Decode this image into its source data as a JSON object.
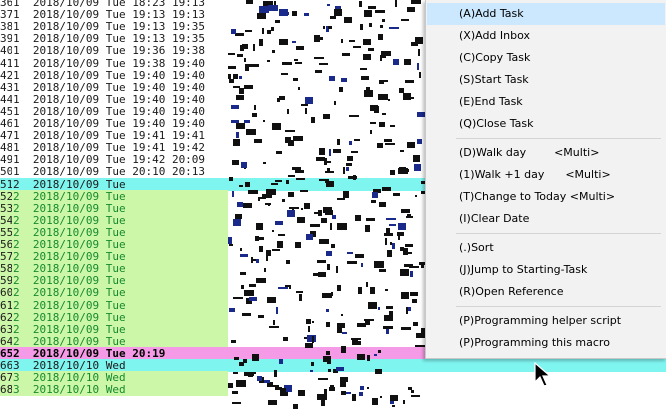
{
  "editor": {
    "lines": [
      {
        "num": "36",
        "text": "1  2018/10/09 Tue 18:23 19:13",
        "style": "normal"
      },
      {
        "num": "37",
        "text": "1  2018/10/09 Tue 19:13 19:13",
        "style": "normal"
      },
      {
        "num": "38",
        "text": "1  2018/10/09 Tue 19:13 19:35",
        "style": "normal"
      },
      {
        "num": "39",
        "text": "1  2018/10/09 Tue 19:13 19:35",
        "style": "normal"
      },
      {
        "num": "40",
        "text": "1  2018/10/09 Tue 19:36 19:38",
        "style": "normal"
      },
      {
        "num": "41",
        "text": "1  2018/10/09 Tue 19:38 19:40",
        "style": "normal"
      },
      {
        "num": "42",
        "text": "1  2018/10/09 Tue 19:40 19:40",
        "style": "normal"
      },
      {
        "num": "43",
        "text": "1  2018/10/09 Tue 19:40 19:40",
        "style": "normal"
      },
      {
        "num": "44",
        "text": "1  2018/10/09 Tue 19:40 19:40",
        "style": "normal"
      },
      {
        "num": "45",
        "text": "1  2018/10/09 Tue 19:40 19:40",
        "style": "normal"
      },
      {
        "num": "46",
        "text": "1  2018/10/09 Tue 19:40 19:40",
        "style": "normal"
      },
      {
        "num": "47",
        "text": "1  2018/10/09 Tue 19:41 19:41",
        "style": "normal"
      },
      {
        "num": "48",
        "text": "1  2018/10/09 Tue 19:41 19:42",
        "style": "normal"
      },
      {
        "num": "49",
        "text": "1  2018/10/09 Tue 19:42 20:09",
        "style": "normal"
      },
      {
        "num": "50",
        "text": "1  2018/10/09 Tue 20:10 20:13",
        "style": "normal"
      },
      {
        "num": "51",
        "text": "2  2018/10/09 Tue",
        "style": "cyan"
      },
      {
        "num": "52",
        "text": "2  2018/10/09 Tue",
        "style": "green"
      },
      {
        "num": "53",
        "text": "2  2018/10/09 Tue",
        "style": "green"
      },
      {
        "num": "54",
        "text": "2  2018/10/09 Tue",
        "style": "green"
      },
      {
        "num": "55",
        "text": "2  2018/10/09 Tue",
        "style": "green"
      },
      {
        "num": "56",
        "text": "2  2018/10/09 Tue",
        "style": "green"
      },
      {
        "num": "57",
        "text": "2  2018/10/09 Tue",
        "style": "green"
      },
      {
        "num": "58",
        "text": "2  2018/10/09 Tue",
        "style": "green"
      },
      {
        "num": "59",
        "text": "2  2018/10/09 Tue",
        "style": "green"
      },
      {
        "num": "60",
        "text": "2  2018/10/09 Tue",
        "style": "green"
      },
      {
        "num": "61",
        "text": "2  2018/10/09 Tue",
        "style": "green"
      },
      {
        "num": "62",
        "text": "2  2018/10/09 Tue",
        "style": "green"
      },
      {
        "num": "63",
        "text": "2  2018/10/09 Tue",
        "style": "green"
      },
      {
        "num": "64",
        "text": "2  2018/10/09 Tue",
        "style": "green"
      },
      {
        "num": "65",
        "text": "2  2018/10/09 Tue 20:19",
        "style": "pink"
      },
      {
        "num": "66",
        "text": "3  2018/10/10 Wed",
        "style": "cyan"
      },
      {
        "num": "67",
        "text": "3  2018/10/10 Wed",
        "style": "green"
      },
      {
        "num": "68",
        "text": "3  2018/10/10 Wed",
        "style": "green"
      }
    ]
  },
  "context_menu": {
    "items": [
      {
        "key": "add-task",
        "label": "(A)Add Task",
        "selected": true
      },
      {
        "key": "add-inbox",
        "label": "(X)Add Inbox"
      },
      {
        "key": "copy-task",
        "label": "(C)Copy Task"
      },
      {
        "key": "start-task",
        "label": "(S)Start Task"
      },
      {
        "key": "end-task",
        "label": "(E)End Task"
      },
      {
        "key": "close-task",
        "label": "(Q)Close Task"
      },
      {
        "sep": true
      },
      {
        "key": "walk-day",
        "label": "(D)Walk day        <Multi>"
      },
      {
        "key": "walk-plus-1-day",
        "label": "(1)Walk +1 day      <Multi>"
      },
      {
        "key": "change-to-today",
        "label": "(T)Change to Today <Multi>"
      },
      {
        "key": "clear-date",
        "label": "(I)Clear Date"
      },
      {
        "sep": true
      },
      {
        "key": "sort",
        "label": "(.)Sort"
      },
      {
        "key": "jump-to-starting-task",
        "label": "(J)Jump to Starting-Task"
      },
      {
        "key": "open-reference",
        "label": "(R)Open Reference"
      },
      {
        "sep": true
      },
      {
        "key": "programming-helper-script",
        "label": "(P)Programming helper script"
      },
      {
        "key": "programming-this-macro",
        "label": "(P)Programming this macro"
      }
    ]
  },
  "colors": {
    "selected_item_bg": "#cce8ff",
    "menu_bg": "#f2f2f2",
    "row_highlight_cyan": "#7ff5f0",
    "row_highlight_pink": "#f59ae6",
    "row_green_bg": "#ccf7a8",
    "text_green": "#178a2e"
  },
  "cursor_icon": "mouse-pointer-icon"
}
